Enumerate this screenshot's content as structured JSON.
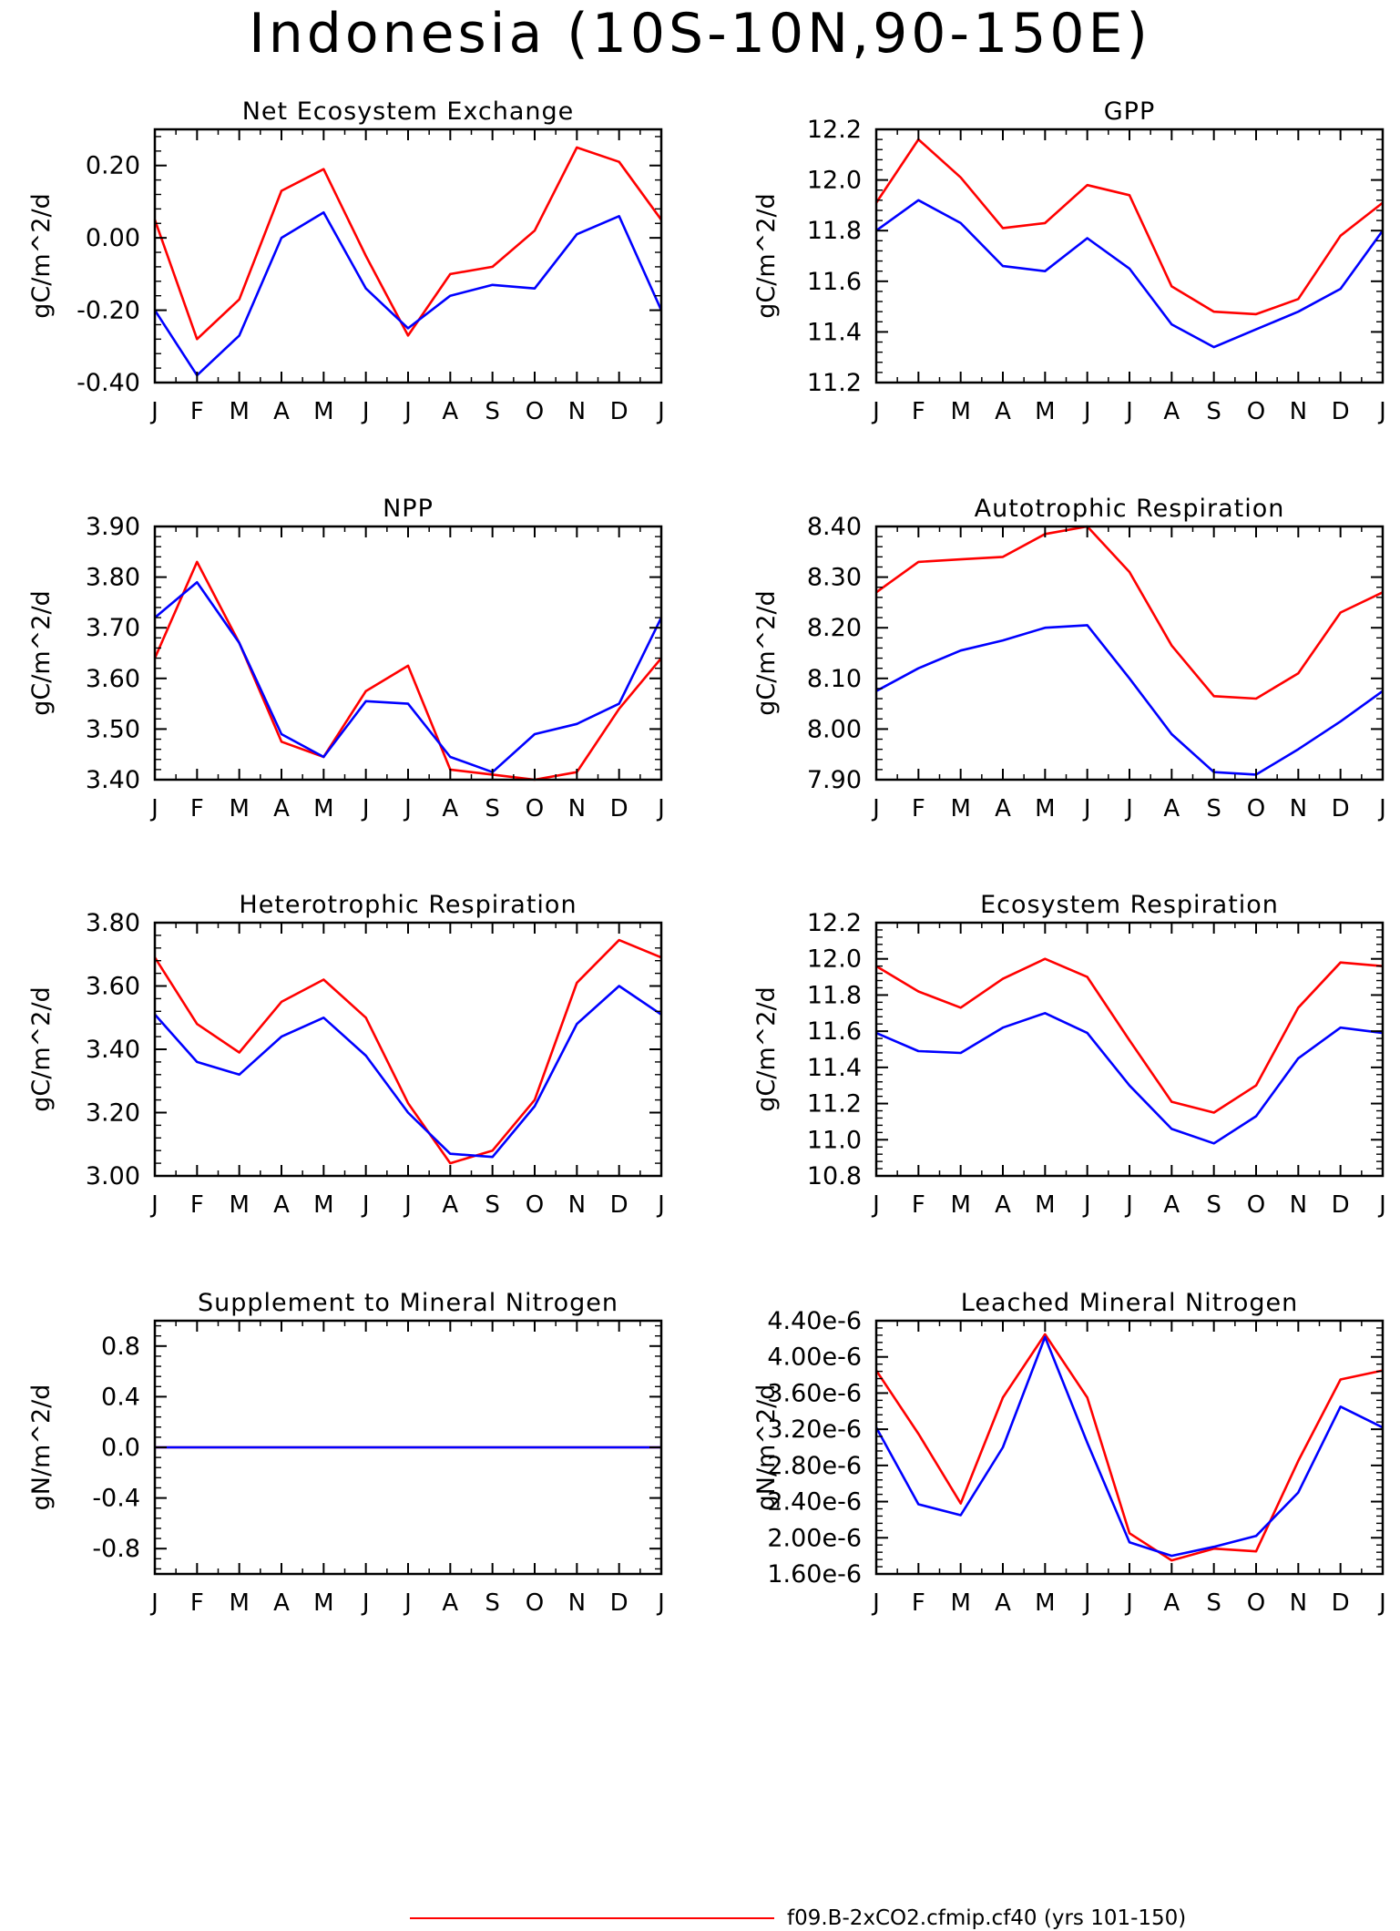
{
  "page": {
    "title": "Indonesia (10S-10N,90-150E)"
  },
  "months": [
    "J",
    "F",
    "M",
    "A",
    "M",
    "J",
    "J",
    "A",
    "S",
    "O",
    "N",
    "D",
    "J"
  ],
  "colors": {
    "case1": "#ff0000",
    "case2": "#0000ff"
  },
  "legend": [
    {
      "label": "f09.B-2xCO2.cfmip.cf40 (yrs 101-150)",
      "color": "#ff0000"
    }
  ],
  "chart_data": [
    {
      "type": "line",
      "title": "Net Ecosystem Exchange",
      "ylabel": "gC/m^2/d",
      "ylim": [
        -0.4,
        0.3
      ],
      "yticks": [
        -0.4,
        -0.2,
        0.0,
        0.2
      ],
      "ytick_labels": [
        "-0.40",
        "-0.20",
        "0.00",
        "0.20"
      ],
      "series": [
        {
          "values": [
            0.05,
            -0.28,
            -0.17,
            0.13,
            0.19,
            -0.05,
            -0.27,
            -0.1,
            -0.08,
            0.02,
            0.25,
            0.21,
            0.05
          ]
        },
        {
          "values": [
            -0.2,
            -0.38,
            -0.27,
            0.0,
            0.07,
            -0.14,
            -0.25,
            -0.16,
            -0.13,
            -0.14,
            0.01,
            0.06,
            -0.2
          ]
        }
      ]
    },
    {
      "type": "line",
      "title": "GPP",
      "ylabel": "gC/m^2/d",
      "ylim": [
        11.2,
        12.2
      ],
      "yticks": [
        11.2,
        11.4,
        11.6,
        11.8,
        12.0,
        12.2
      ],
      "ytick_labels": [
        "11.2",
        "11.4",
        "11.6",
        "11.8",
        "12.0",
        "12.2"
      ],
      "series": [
        {
          "values": [
            11.91,
            12.16,
            12.01,
            11.81,
            11.83,
            11.98,
            11.94,
            11.58,
            11.48,
            11.47,
            11.53,
            11.78,
            11.91
          ]
        },
        {
          "values": [
            11.8,
            11.92,
            11.83,
            11.66,
            11.64,
            11.77,
            11.65,
            11.43,
            11.34,
            11.41,
            11.48,
            11.57,
            11.8
          ]
        }
      ]
    },
    {
      "type": "line",
      "title": "NPP",
      "ylabel": "gC/m^2/d",
      "ylim": [
        3.4,
        3.9
      ],
      "yticks": [
        3.4,
        3.5,
        3.6,
        3.7,
        3.8,
        3.9
      ],
      "ytick_labels": [
        "3.40",
        "3.50",
        "3.60",
        "3.70",
        "3.80",
        "3.90"
      ],
      "series": [
        {
          "values": [
            3.64,
            3.83,
            3.67,
            3.475,
            3.445,
            3.575,
            3.625,
            3.42,
            3.41,
            3.4,
            3.415,
            3.54,
            3.64
          ]
        },
        {
          "values": [
            3.72,
            3.79,
            3.67,
            3.49,
            3.445,
            3.555,
            3.55,
            3.445,
            3.415,
            3.49,
            3.51,
            3.55,
            3.72
          ]
        }
      ]
    },
    {
      "type": "line",
      "title": "Autotrophic Respiration",
      "ylabel": "gC/m^2/d",
      "ylim": [
        7.9,
        8.4
      ],
      "yticks": [
        7.9,
        8.0,
        8.1,
        8.2,
        8.3,
        8.4
      ],
      "ytick_labels": [
        "7.90",
        "8.00",
        "8.10",
        "8.20",
        "8.30",
        "8.40"
      ],
      "series": [
        {
          "values": [
            8.27,
            8.33,
            8.335,
            8.34,
            8.385,
            8.4,
            8.31,
            8.165,
            8.065,
            8.06,
            8.11,
            8.23,
            8.27
          ]
        },
        {
          "values": [
            8.075,
            8.12,
            8.155,
            8.175,
            8.2,
            8.205,
            8.1,
            7.99,
            7.915,
            7.91,
            7.96,
            8.015,
            8.075
          ]
        }
      ]
    },
    {
      "type": "line",
      "title": "Heterotrophic Respiration",
      "ylabel": "gC/m^2/d",
      "ylim": [
        3.0,
        3.8
      ],
      "yticks": [
        3.0,
        3.2,
        3.4,
        3.6,
        3.8
      ],
      "ytick_labels": [
        "3.00",
        "3.20",
        "3.40",
        "3.60",
        "3.80"
      ],
      "series": [
        {
          "values": [
            3.69,
            3.48,
            3.39,
            3.55,
            3.62,
            3.5,
            3.23,
            3.04,
            3.08,
            3.24,
            3.61,
            3.745,
            3.69
          ]
        },
        {
          "values": [
            3.51,
            3.36,
            3.32,
            3.44,
            3.5,
            3.38,
            3.2,
            3.07,
            3.06,
            3.22,
            3.48,
            3.6,
            3.51
          ]
        }
      ]
    },
    {
      "type": "line",
      "title": "Ecosystem Respiration",
      "ylabel": "gC/m^2/d",
      "ylim": [
        10.8,
        12.2
      ],
      "yticks": [
        10.8,
        11.0,
        11.2,
        11.4,
        11.6,
        11.8,
        12.0,
        12.2
      ],
      "ytick_labels": [
        "10.8",
        "11.0",
        "11.2",
        "11.4",
        "11.6",
        "11.8",
        "12.0",
        "12.2"
      ],
      "series": [
        {
          "values": [
            11.96,
            11.82,
            11.73,
            11.89,
            12.0,
            11.9,
            11.55,
            11.21,
            11.15,
            11.3,
            11.73,
            11.98,
            11.96
          ]
        },
        {
          "values": [
            11.59,
            11.49,
            11.48,
            11.62,
            11.7,
            11.59,
            11.3,
            11.06,
            10.98,
            11.13,
            11.45,
            11.62,
            11.59
          ]
        }
      ]
    },
    {
      "type": "line",
      "title": "Supplement to Mineral Nitrogen",
      "ylabel": "gN/m^2/d",
      "ylim": [
        -1.0,
        1.0
      ],
      "yticks": [
        -0.8,
        -0.4,
        0.0,
        0.4,
        0.8
      ],
      "ytick_labels": [
        "-0.8",
        "-0.4",
        "0.0",
        "0.4",
        "0.8"
      ],
      "series": [
        {
          "values": [
            0,
            0,
            0,
            0,
            0,
            0,
            0,
            0,
            0,
            0,
            0,
            0,
            0
          ]
        },
        {
          "values": [
            0,
            0,
            0,
            0,
            0,
            0,
            0,
            0,
            0,
            0,
            0,
            0,
            0
          ]
        }
      ]
    },
    {
      "type": "line",
      "title": "Leached Mineral Nitrogen",
      "ylabel": "gN/m^2/d",
      "ylim": [
        1.6e-06,
        4.4e-06
      ],
      "yticks": [
        1.6e-06,
        2e-06,
        2.4e-06,
        2.8e-06,
        3.2e-06,
        3.6e-06,
        4e-06,
        4.4e-06
      ],
      "ytick_labels": [
        "1.60e-6",
        "2.00e-6",
        "2.40e-6",
        "2.80e-6",
        "3.20e-6",
        "3.60e-6",
        "4.00e-6",
        "4.40e-6"
      ],
      "series": [
        {
          "values": [
            3.85e-06,
            3.15e-06,
            2.38e-06,
            3.55e-06,
            4.25e-06,
            3.55e-06,
            2.05e-06,
            1.75e-06,
            1.88e-06,
            1.85e-06,
            2.85e-06,
            3.75e-06,
            3.85e-06
          ]
        },
        {
          "values": [
            3.22e-06,
            2.37e-06,
            2.25e-06,
            3e-06,
            4.22e-06,
            3.05e-06,
            1.95e-06,
            1.8e-06,
            1.9e-06,
            2.02e-06,
            2.5e-06,
            3.45e-06,
            3.22e-06
          ]
        }
      ]
    }
  ]
}
